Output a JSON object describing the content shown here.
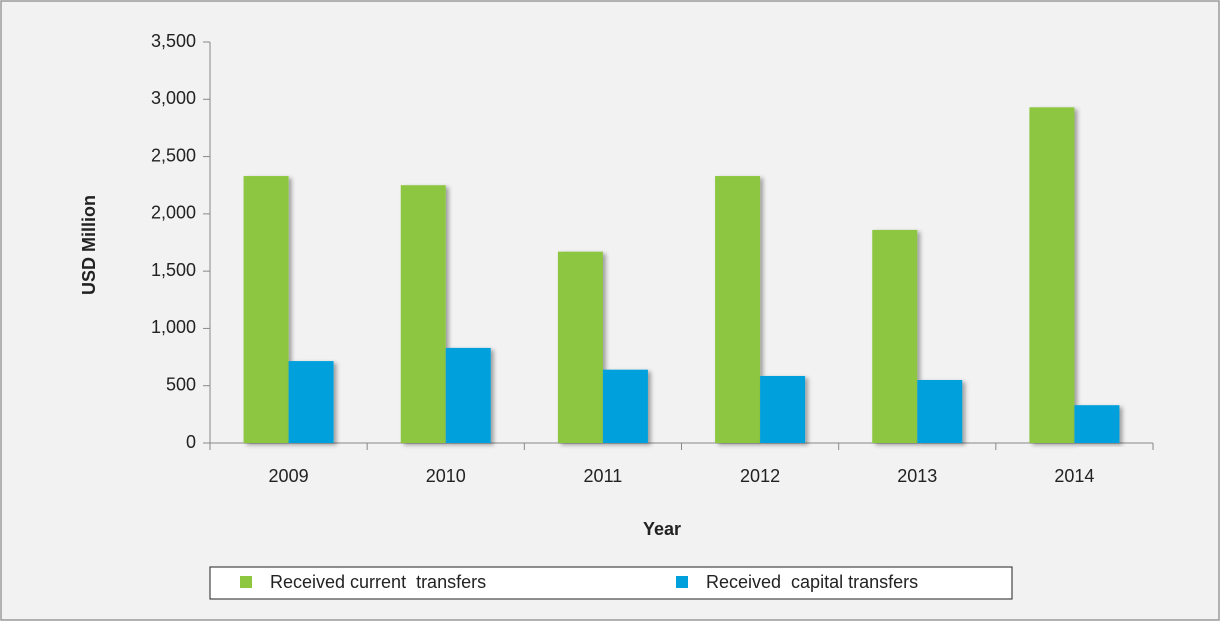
{
  "chart_data": {
    "type": "bar",
    "categories": [
      "2009",
      "2010",
      "2011",
      "2012",
      "2013",
      "2014"
    ],
    "series": [
      {
        "name": "Received current  transfers",
        "color": "#8dc63f",
        "values": [
          2330,
          2250,
          1670,
          2330,
          1860,
          2930
        ]
      },
      {
        "name": "Received  capital transfers",
        "color": "#00a0dc",
        "values": [
          715,
          830,
          640,
          585,
          550,
          330
        ]
      }
    ],
    "xlabel": "Year",
    "ylabel": "USD Million",
    "ylim": [
      0,
      3500
    ],
    "yticks": [
      0,
      500,
      {
        "value": 1000,
        "label": "1,000"
      },
      {
        "value": 1500,
        "label": "1,500"
      },
      {
        "value": 2000,
        "label": "2,000"
      },
      {
        "value": 2500,
        "label": "2,500"
      },
      {
        "value": 3000,
        "label": "3,000"
      },
      {
        "value": 3500,
        "label": "3,500"
      }
    ],
    "grid": false,
    "legend": "bottom"
  }
}
